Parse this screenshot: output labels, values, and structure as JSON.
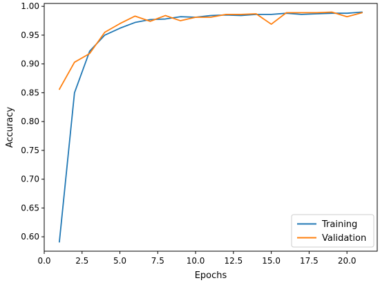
{
  "chart_data": {
    "type": "line",
    "title": "",
    "xlabel": "Epochs",
    "ylabel": "Accuracy",
    "xlim": [
      0.0,
      22.0
    ],
    "ylim": [
      0.575,
      1.005
    ],
    "x_ticks": [
      0.0,
      2.5,
      5.0,
      7.5,
      10.0,
      12.5,
      15.0,
      17.5,
      20.0
    ],
    "x_tick_labels": [
      "0.0",
      "2.5",
      "5.0",
      "7.5",
      "10.0",
      "12.5",
      "15.0",
      "17.5",
      "20.0"
    ],
    "y_ticks": [
      0.6,
      0.65,
      0.7,
      0.75,
      0.8,
      0.85,
      0.9,
      0.95,
      1.0
    ],
    "y_tick_labels": [
      "0.60",
      "0.65",
      "0.70",
      "0.75",
      "0.80",
      "0.85",
      "0.90",
      "0.95",
      "1.00"
    ],
    "grid": false,
    "legend_position": "lower-right",
    "x": [
      1,
      2,
      3,
      4,
      5,
      6,
      7,
      8,
      9,
      10,
      11,
      12,
      13,
      14,
      15,
      16,
      17,
      18,
      19,
      20,
      21
    ],
    "series": [
      {
        "name": "Training",
        "color": "#1f77b4",
        "values": [
          0.591,
          0.85,
          0.922,
          0.95,
          0.962,
          0.972,
          0.977,
          0.978,
          0.982,
          0.981,
          0.984,
          0.985,
          0.984,
          0.986,
          0.986,
          0.988,
          0.986,
          0.987,
          0.988,
          0.988,
          0.99
        ]
      },
      {
        "name": "Validation",
        "color": "#ff7f0e",
        "values": [
          0.856,
          0.903,
          0.918,
          0.955,
          0.97,
          0.983,
          0.974,
          0.984,
          0.975,
          0.981,
          0.981,
          0.986,
          0.986,
          0.987,
          0.969,
          0.989,
          0.989,
          0.989,
          0.99,
          0.982,
          0.989
        ]
      }
    ]
  }
}
